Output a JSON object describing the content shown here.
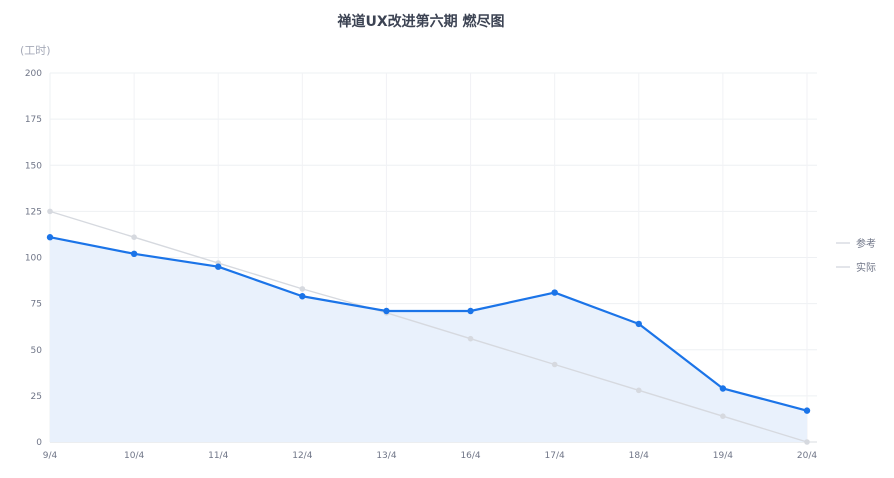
{
  "chart_data": {
    "type": "line",
    "title": "禅道UX改进第六期 燃尽图",
    "ylabel": "(工时)",
    "xlabel": "",
    "categories": [
      "9/4",
      "10/4",
      "11/4",
      "12/4",
      "13/4",
      "16/4",
      "17/4",
      "18/4",
      "19/4",
      "20/4"
    ],
    "ylim": [
      0,
      200
    ],
    "yticks": [
      0,
      25,
      50,
      75,
      100,
      125,
      150,
      175,
      200
    ],
    "grid": true,
    "legend_position": "right",
    "series": [
      {
        "name": "参考",
        "color": "#d6d9df",
        "values": [
          125,
          111,
          97,
          83,
          70,
          56,
          42,
          28,
          14,
          0
        ]
      },
      {
        "name": "实际",
        "color": "#1b74e8",
        "area_color": "#e9f1fc",
        "values": [
          111,
          102,
          95,
          79,
          71,
          71,
          81,
          64,
          29,
          17
        ]
      }
    ]
  }
}
